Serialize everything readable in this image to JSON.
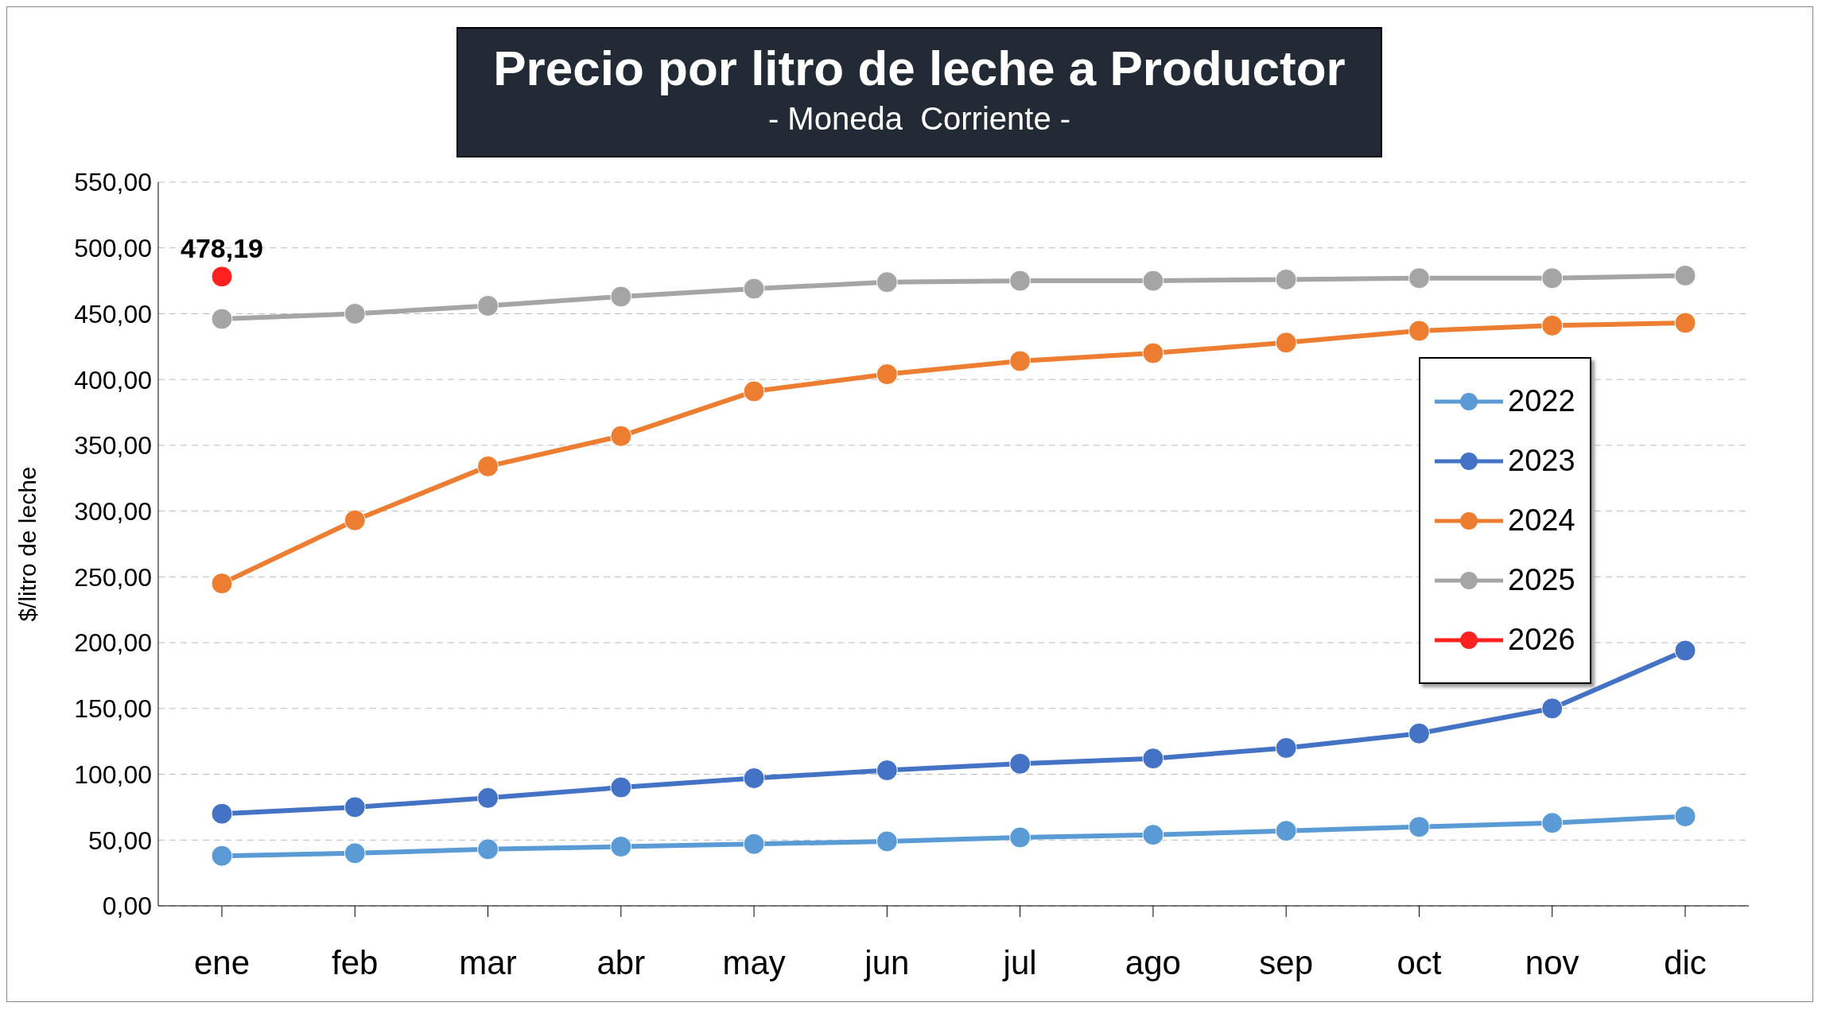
{
  "chart_data": {
    "type": "line",
    "title": "Precio por litro de leche a Productor",
    "subtitle": "- Moneda  Corriente -",
    "ylabel": "$/litro de leche",
    "categories": [
      "ene",
      "feb",
      "mar",
      "abr",
      "may",
      "jun",
      "jul",
      "ago",
      "sep",
      "oct",
      "nov",
      "dic"
    ],
    "series": [
      {
        "name": "2022",
        "color": "#5b9bd5",
        "values": [
          38,
          40,
          43,
          45,
          47,
          49,
          52,
          54,
          57,
          60,
          63,
          68
        ]
      },
      {
        "name": "2023",
        "color": "#4472c4",
        "values": [
          70,
          75,
          82,
          90,
          97,
          103,
          108,
          112,
          120,
          131,
          150,
          194
        ]
      },
      {
        "name": "2024",
        "color": "#ed7d31",
        "values": [
          245,
          293,
          334,
          357,
          391,
          404,
          414,
          420,
          428,
          437,
          441,
          443
        ]
      },
      {
        "name": "2025",
        "color": "#a5a5a5",
        "values": [
          446,
          450,
          456,
          463,
          469,
          474,
          475,
          475,
          476,
          477,
          477,
          479
        ]
      },
      {
        "name": "2026",
        "color": "#ff2020",
        "values": [
          478.19,
          null,
          null,
          null,
          null,
          null,
          null,
          null,
          null,
          null,
          null,
          null
        ],
        "value_labels": [
          "478,19",
          null,
          null,
          null,
          null,
          null,
          null,
          null,
          null,
          null,
          null,
          null
        ]
      }
    ],
    "ylim": [
      0,
      550
    ],
    "yticks": [
      {
        "value": 0,
        "label": "0,00"
      },
      {
        "value": 50,
        "label": "50,00"
      },
      {
        "value": 100,
        "label": "100,00"
      },
      {
        "value": 150,
        "label": "150,00"
      },
      {
        "value": 200,
        "label": "200,00"
      },
      {
        "value": 250,
        "label": "250,00"
      },
      {
        "value": 300,
        "label": "300,00"
      },
      {
        "value": 350,
        "label": "350,00"
      },
      {
        "value": 400,
        "label": "400,00"
      },
      {
        "value": 450,
        "label": "450,00"
      },
      {
        "value": 500,
        "label": "500,00"
      },
      {
        "value": 550,
        "label": "550,00"
      }
    ],
    "grid": "y",
    "legend": "right",
    "marker": "circle",
    "line_style": "solid"
  }
}
